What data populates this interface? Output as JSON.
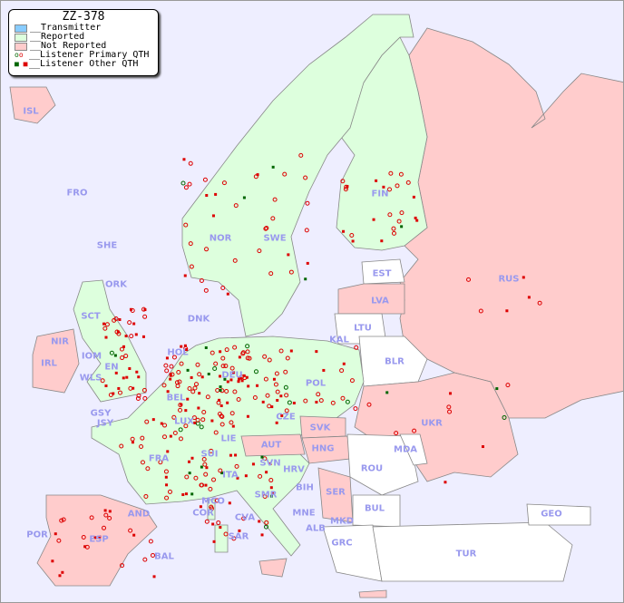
{
  "legend": {
    "title": "ZZ-378",
    "items": [
      "__Transmitter",
      "__Reported",
      "__Not Reported",
      "__Listener Primary QTH",
      "__Listener Other QTH"
    ]
  },
  "colors": {
    "transmitter": "#88ccff",
    "reported": "#ddffdd",
    "not_reported": "#ffcccc",
    "background": "#eeeeff",
    "unreported_neutral": "#ffffff",
    "primary_dot": "#dd0000",
    "other_dot": "#dd0000",
    "green_dot": "#006600"
  },
  "countries": {
    "ISL": "ISL",
    "FRO": "FRO",
    "SHE": "SHE",
    "ORK": "ORK",
    "SCT": "SCT",
    "NIR": "NIR",
    "IOM": "IOM",
    "IRL": "IRL",
    "WLS": "WLS",
    "ENG": "EN",
    "GSY": "GSY",
    "JSY": "JSY",
    "HOL": "HOL",
    "BEL": "BEL",
    "LUX": "LUX",
    "FRA": "FRA",
    "DEU": "DEU",
    "DNK": "DNK",
    "NOR": "NOR",
    "SWE": "SWE",
    "FIN": "FIN",
    "EST": "EST",
    "LVA": "LVA",
    "LTU": "LTU",
    "KAL": "KAL",
    "POL": "POL",
    "CZE": "CZE",
    "SVK": "SVK",
    "AUT": "AUT",
    "HNG": "HNG",
    "SUI": "SUI",
    "LIE": "LIE",
    "SVN": "SVN",
    "HRV": "HRV",
    "BIH": "BIH",
    "SRB": "SER",
    "MNE": "MNE",
    "ALB": "ALB",
    "MKD": "MKD",
    "GRC": "GRC",
    "BUL": "BUL",
    "ROU": "ROU",
    "MDA": "MDA",
    "UKR": "UKR",
    "BLR": "BLR",
    "RUS": "RUS",
    "GEO": "GEO",
    "TUR": "TUR",
    "ITA": "ITA",
    "MCO": "MCO",
    "COR": "COR",
    "CVA": "CVA",
    "SMR": "SMR",
    "SAR": "SAR",
    "AND": "AND",
    "ESP": "ESP",
    "POR": "POR",
    "BAL": "BAL"
  }
}
